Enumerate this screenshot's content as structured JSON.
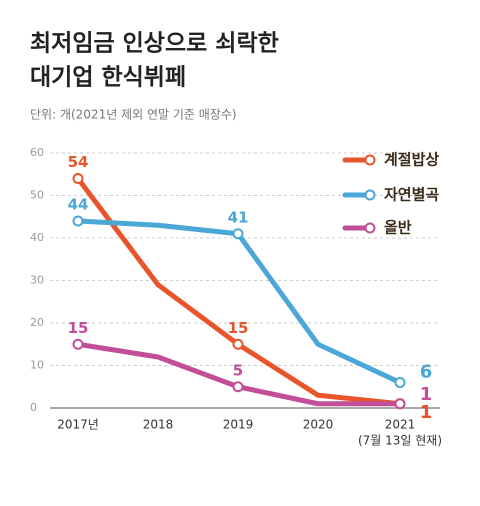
{
  "chart_data": {
    "type": "line",
    "title_lines": [
      "최저임금 인상으로 쇠락한",
      "대기업 한식뷔페"
    ],
    "subtitle": "단위: 개(2021년 제외 연말 기준 매장수)",
    "categories": [
      "2017년",
      "2018",
      "2019",
      "2020",
      "2021"
    ],
    "x_note": "(7월 13일 현재)",
    "ylim": [
      0,
      60
    ],
    "yticks": [
      0,
      10,
      20,
      30,
      40,
      50,
      60
    ],
    "grid": true,
    "legend": "top-right",
    "series": [
      {
        "name": "계절밥상",
        "color": "#e8552b",
        "values": [
          54,
          29,
          15,
          3,
          1
        ],
        "value_labels": [
          "54",
          null,
          "15",
          null,
          "1"
        ]
      },
      {
        "name": "자연별곡",
        "color": "#4aa7d6",
        "values": [
          44,
          43,
          41,
          15,
          6
        ],
        "value_labels": [
          "44",
          null,
          "41",
          null,
          "6"
        ]
      },
      {
        "name": "올반",
        "color": "#c24d98",
        "values": [
          15,
          12,
          5,
          1,
          1
        ],
        "value_labels": [
          "15",
          null,
          "5",
          null,
          "1"
        ]
      }
    ]
  }
}
